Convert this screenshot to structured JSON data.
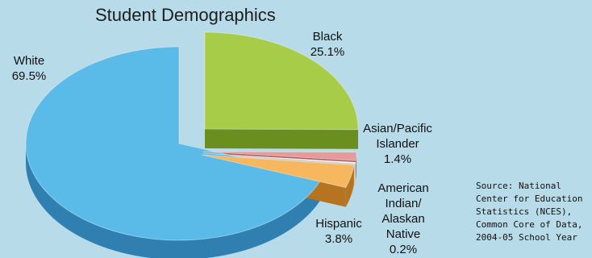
{
  "chart_data": {
    "type": "pie",
    "title": "Student Demographics",
    "slices": [
      {
        "label_lines": [
          "White"
        ],
        "value": 69.5,
        "value_text": "69.5%",
        "color": "#5bbbe8",
        "side": "#2f7fb0"
      },
      {
        "label_lines": [
          "Black"
        ],
        "value": 25.1,
        "value_text": "25.1%",
        "color": "#a6cc48",
        "side": "#6a8f1f"
      },
      {
        "label_lines": [
          "Asian/Pacific",
          "Islander"
        ],
        "value": 1.4,
        "value_text": "1.4%",
        "color": "#e79a9a",
        "side": "#a65555"
      },
      {
        "label_lines": [
          "American",
          "Indian/",
          "Alaskan",
          "Native"
        ],
        "value": 0.2,
        "value_text": "0.2%",
        "color": "#ffffff",
        "side": "#cccccc"
      },
      {
        "label_lines": [
          "Hispanic"
        ],
        "value": 3.8,
        "value_text": "3.8%",
        "color": "#f6b75e",
        "side": "#b77420"
      }
    ]
  },
  "source_note": "Source: National Center for Education Statistics (NCES), Common Core of Data, 2004-05 School Year"
}
